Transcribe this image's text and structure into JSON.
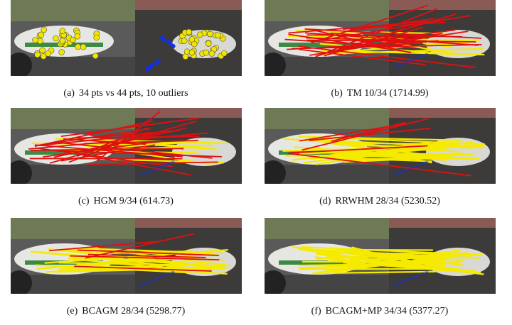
{
  "panels": [
    {
      "label": "(a)",
      "caption": "34 pts vs 44 pts, 10 outliers"
    },
    {
      "label": "(b)",
      "caption": "TM 10/34 (1714.99)"
    },
    {
      "label": "(c)",
      "caption": "HGM 9/34 (614.73)"
    },
    {
      "label": "(d)",
      "caption": "RRWHM 28/34 (5230.52)"
    },
    {
      "label": "(e)",
      "caption": "BCAGM 28/34 (5298.77)"
    },
    {
      "label": "(f)",
      "caption": "BCAGM+MP 34/34 (5377.27)"
    }
  ]
}
